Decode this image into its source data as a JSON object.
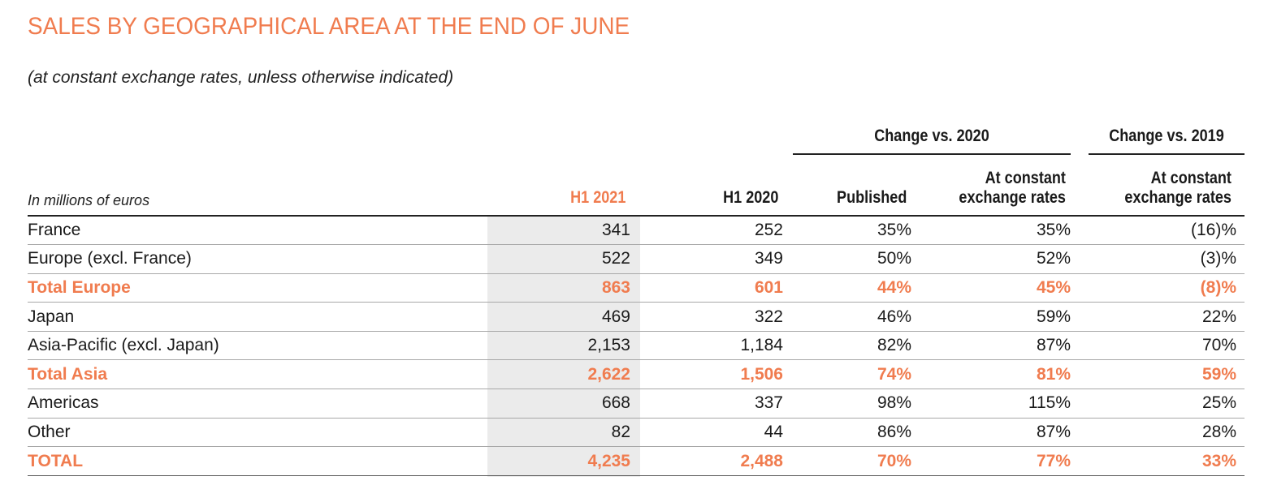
{
  "title": "SALES BY GEOGRAPHICAL AREA AT THE END OF JUNE",
  "subtitle": "(at constant exchange rates, unless otherwise indicated)",
  "unit_label": "In millions of euros",
  "group_headers": {
    "change_2020": "Change vs. 2020",
    "change_2019": "Change vs. 2019"
  },
  "columns": {
    "h1_2021": "H1 2021",
    "h1_2020": "H1 2020",
    "published": "Published",
    "constant_2020_line1": "At constant",
    "constant_2020_line2": "exchange rates",
    "constant_2019_line1": "At constant",
    "constant_2019_line2": "exchange rates"
  },
  "colors": {
    "accent": "#f07c4f",
    "shade": "#ebebeb"
  },
  "rows": [
    {
      "label": "France",
      "h1_2021": "341",
      "h1_2020": "252",
      "published": "35%",
      "constant_2020": "35%",
      "constant_2019": "(16)%",
      "total": false
    },
    {
      "label": "Europe (excl. France)",
      "h1_2021": "522",
      "h1_2020": "349",
      "published": "50%",
      "constant_2020": "52%",
      "constant_2019": "(3)%",
      "total": false
    },
    {
      "label": "Total Europe",
      "h1_2021": "863",
      "h1_2020": "601",
      "published": "44%",
      "constant_2020": "45%",
      "constant_2019": "(8)%",
      "total": true
    },
    {
      "label": "Japan",
      "h1_2021": "469",
      "h1_2020": "322",
      "published": "46%",
      "constant_2020": "59%",
      "constant_2019": "22%",
      "total": false
    },
    {
      "label": "Asia-Pacific (excl. Japan)",
      "h1_2021": "2,153",
      "h1_2020": "1,184",
      "published": "82%",
      "constant_2020": "87%",
      "constant_2019": "70%",
      "total": false
    },
    {
      "label": "Total Asia",
      "h1_2021": "2,622",
      "h1_2020": "1,506",
      "published": "74%",
      "constant_2020": "81%",
      "constant_2019": "59%",
      "total": true
    },
    {
      "label": "Americas",
      "h1_2021": "668",
      "h1_2020": "337",
      "published": "98%",
      "constant_2020": "115%",
      "constant_2019": "25%",
      "total": false
    },
    {
      "label": "Other",
      "h1_2021": "82",
      "h1_2020": "44",
      "published": "86%",
      "constant_2020": "87%",
      "constant_2019": "28%",
      "total": false
    },
    {
      "label": "TOTAL",
      "h1_2021": "4,235",
      "h1_2020": "2,488",
      "published": "70%",
      "constant_2020": "77%",
      "constant_2019": "33%",
      "total": true
    }
  ]
}
